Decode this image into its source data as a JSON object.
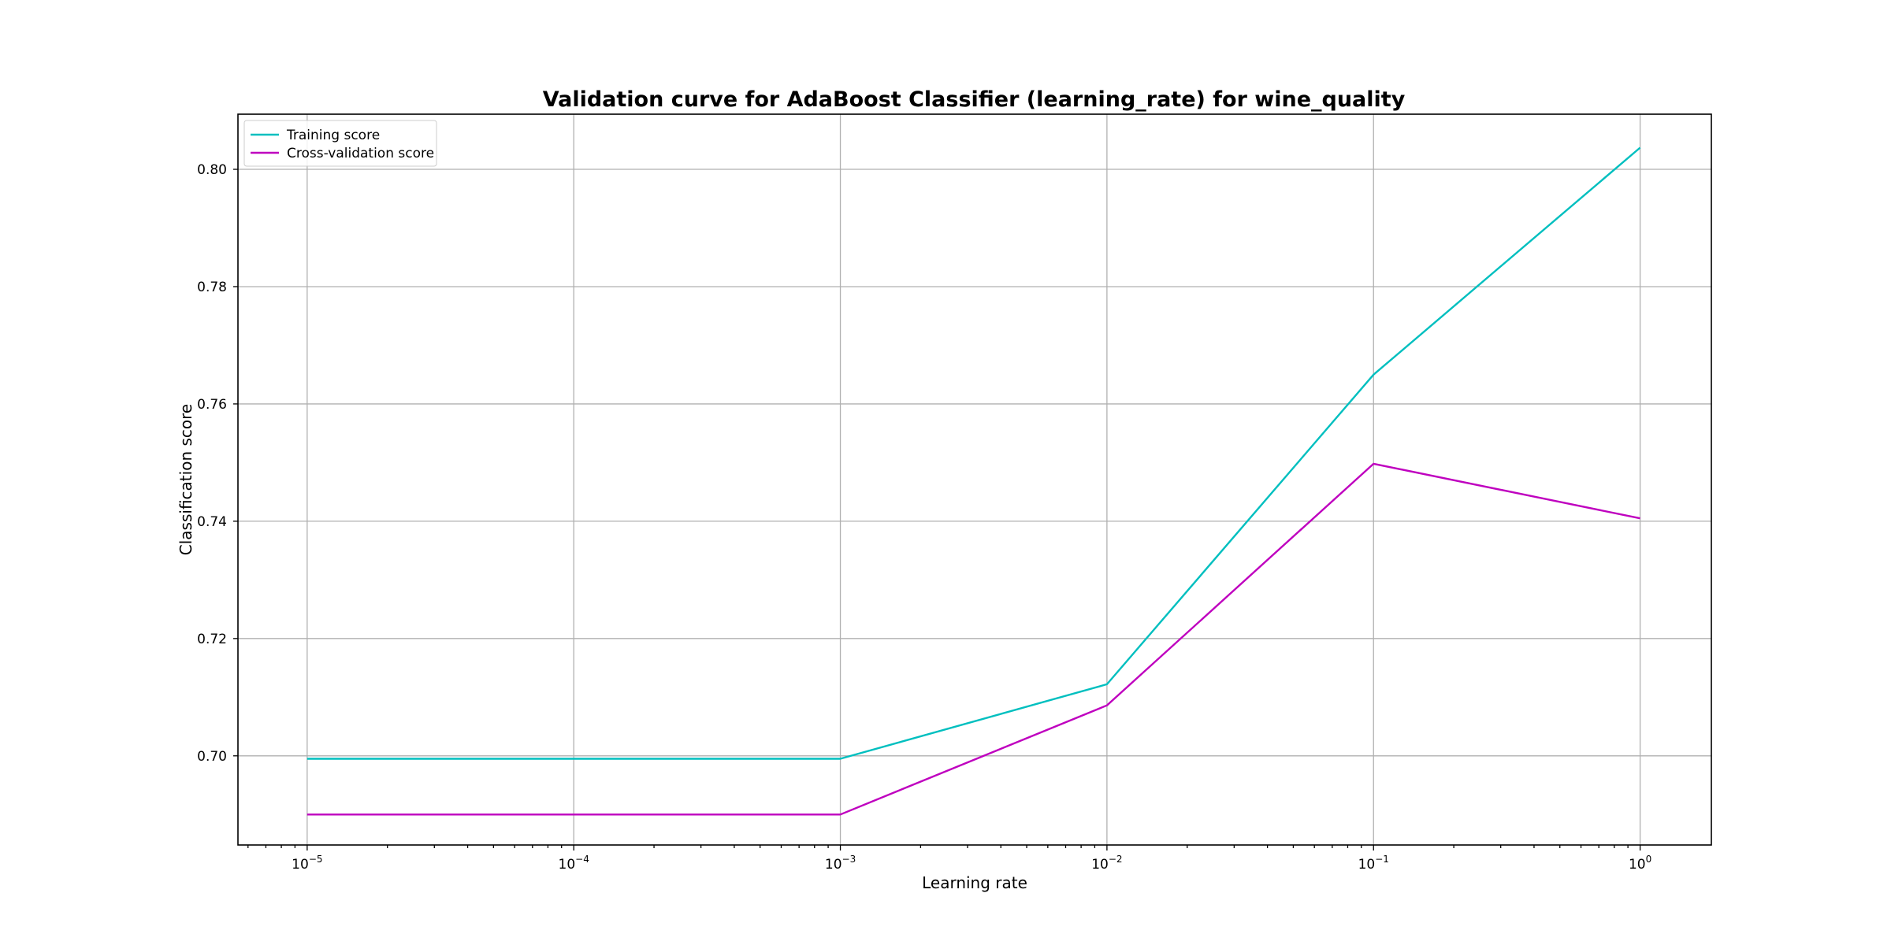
{
  "colors": {
    "training": "#00bfbf",
    "cross_validation": "#bf00bf"
  },
  "chart_data": {
    "type": "line",
    "title": "Validation curve for AdaBoost Classifier (learning_rate) for wine_quality",
    "xlabel": "Learning rate",
    "ylabel": "Classification score",
    "xscale": "log",
    "grid": true,
    "legend_position": "top-left",
    "x": [
      1e-05,
      0.001,
      0.01,
      0.1,
      1
    ],
    "xlim": [
      5.5e-06,
      1.85
    ],
    "ylim": [
      0.6848,
      0.8094
    ],
    "xticks": [
      {
        "value": 1e-05,
        "base": "10",
        "exp": "−5"
      },
      {
        "value": 0.0001,
        "base": "10",
        "exp": "−4"
      },
      {
        "value": 0.001,
        "base": "10",
        "exp": "−3"
      },
      {
        "value": 0.01,
        "base": "10",
        "exp": "−2"
      },
      {
        "value": 0.1,
        "base": "10",
        "exp": "−1"
      },
      {
        "value": 1,
        "base": "10",
        "exp": "0"
      }
    ],
    "yticks": [
      "0.70",
      "0.72",
      "0.74",
      "0.76",
      "0.78",
      "0.80"
    ],
    "series": [
      {
        "name": "Training score",
        "color": "#00bfbf",
        "values": [
          0.6995,
          0.6995,
          0.7122,
          0.765,
          0.8037
        ]
      },
      {
        "name": "Cross-validation score",
        "color": "#bf00bf",
        "values": [
          0.69,
          0.69,
          0.7086,
          0.7498,
          0.7405
        ]
      }
    ]
  }
}
